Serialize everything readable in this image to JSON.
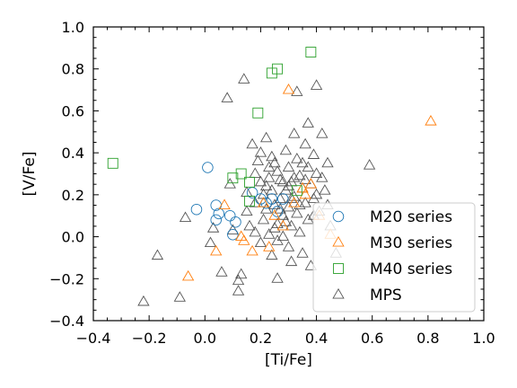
{
  "chart_data": {
    "type": "scatter",
    "title": "",
    "xlabel": "[Ti/Fe]",
    "ylabel": "[V/Fe]",
    "xlim": [
      -0.4,
      1.0
    ],
    "ylim": [
      -0.4,
      1.0
    ],
    "x_ticks": [
      -0.4,
      -0.2,
      0.0,
      0.2,
      0.4,
      0.6,
      0.8,
      1.0
    ],
    "y_ticks": [
      -0.4,
      -0.2,
      0.0,
      0.2,
      0.4,
      0.6,
      0.8,
      1.0
    ],
    "x_tick_labels": [
      "−0.4",
      "−0.2",
      "0.0",
      "0.2",
      "0.4",
      "0.6",
      "0.8",
      "1.0"
    ],
    "y_tick_labels": [
      "−0.4",
      "−0.2",
      "0.0",
      "0.2",
      "0.4",
      "0.6",
      "0.8",
      "1.0"
    ],
    "grid": false,
    "legend_position": "lower-right",
    "series": [
      {
        "name": "M20 series",
        "marker": "circle",
        "color": "#1f77b4",
        "points": [
          [
            0.01,
            0.33
          ],
          [
            -0.03,
            0.13
          ],
          [
            0.04,
            0.15
          ],
          [
            0.04,
            0.08
          ],
          [
            0.09,
            0.1
          ],
          [
            0.1,
            0.01
          ],
          [
            0.11,
            0.07
          ],
          [
            0.17,
            0.21
          ],
          [
            0.2,
            0.18
          ],
          [
            0.22,
            0.16
          ],
          [
            0.24,
            0.18
          ],
          [
            0.26,
            0.12
          ],
          [
            0.28,
            0.18
          ],
          [
            0.05,
            0.11
          ]
        ]
      },
      {
        "name": "M30 series",
        "marker": "triangle",
        "color": "#ff7f0e",
        "points": [
          [
            -0.06,
            -0.19
          ],
          [
            0.04,
            -0.07
          ],
          [
            0.07,
            0.15
          ],
          [
            0.14,
            -0.02
          ],
          [
            0.17,
            -0.07
          ],
          [
            0.21,
            0.16
          ],
          [
            0.25,
            0.1
          ],
          [
            0.28,
            0.05
          ],
          [
            0.3,
            0.7
          ],
          [
            0.32,
            0.16
          ],
          [
            0.35,
            0.23
          ],
          [
            0.36,
            0.2
          ],
          [
            0.38,
            0.25
          ],
          [
            0.41,
            0.1
          ],
          [
            0.45,
            0.01
          ],
          [
            0.81,
            0.55
          ],
          [
            0.13,
            0.0
          ],
          [
            0.23,
            -0.05
          ]
        ]
      },
      {
        "name": "M40 series",
        "marker": "square",
        "color": "#2ca02c",
        "points": [
          [
            -0.33,
            0.35
          ],
          [
            0.1,
            0.28
          ],
          [
            0.13,
            0.3
          ],
          [
            0.16,
            0.26
          ],
          [
            0.16,
            0.17
          ],
          [
            0.19,
            0.59
          ],
          [
            0.24,
            0.78
          ],
          [
            0.26,
            0.8
          ],
          [
            0.33,
            0.22
          ],
          [
            0.38,
            0.88
          ]
        ]
      },
      {
        "name": "MPS",
        "marker": "triangle",
        "color": "#555555",
        "points": [
          [
            -0.22,
            -0.31
          ],
          [
            -0.17,
            -0.09
          ],
          [
            -0.09,
            -0.29
          ],
          [
            -0.07,
            0.09
          ],
          [
            0.02,
            -0.03
          ],
          [
            0.03,
            0.04
          ],
          [
            0.06,
            -0.17
          ],
          [
            0.08,
            0.66
          ],
          [
            0.09,
            0.25
          ],
          [
            0.1,
            0.03
          ],
          [
            0.12,
            -0.21
          ],
          [
            0.12,
            -0.26
          ],
          [
            0.13,
            -0.18
          ],
          [
            0.14,
            0.75
          ],
          [
            0.15,
            0.12
          ],
          [
            0.16,
            0.05
          ],
          [
            0.17,
            0.44
          ],
          [
            0.18,
            0.3
          ],
          [
            0.18,
            0.02
          ],
          [
            0.19,
            0.36
          ],
          [
            0.2,
            0.4
          ],
          [
            0.2,
            -0.03
          ],
          [
            0.21,
            0.2
          ],
          [
            0.21,
            0.08
          ],
          [
            0.22,
            0.47
          ],
          [
            0.22,
            0.13
          ],
          [
            0.23,
            0.28
          ],
          [
            0.23,
            0.01
          ],
          [
            0.24,
            0.38
          ],
          [
            0.24,
            0.22
          ],
          [
            0.24,
            -0.09
          ],
          [
            0.25,
            0.35
          ],
          [
            0.25,
            0.15
          ],
          [
            0.26,
            0.06
          ],
          [
            0.26,
            -0.02
          ],
          [
            0.26,
            -0.2
          ],
          [
            0.27,
            0.27
          ],
          [
            0.27,
            0.18
          ],
          [
            0.28,
            0.1
          ],
          [
            0.28,
            0.0
          ],
          [
            0.29,
            0.41
          ],
          [
            0.29,
            0.22
          ],
          [
            0.3,
            0.33
          ],
          [
            0.3,
            0.14
          ],
          [
            0.3,
            -0.05
          ],
          [
            0.31,
            0.26
          ],
          [
            0.31,
            0.05
          ],
          [
            0.31,
            -0.12
          ],
          [
            0.32,
            0.49
          ],
          [
            0.32,
            0.19
          ],
          [
            0.33,
            0.37
          ],
          [
            0.33,
            0.69
          ],
          [
            0.33,
            0.11
          ],
          [
            0.34,
            0.29
          ],
          [
            0.34,
            0.02
          ],
          [
            0.35,
            0.23
          ],
          [
            0.35,
            -0.08
          ],
          [
            0.36,
            0.44
          ],
          [
            0.36,
            0.16
          ],
          [
            0.37,
            0.54
          ],
          [
            0.37,
            0.33
          ],
          [
            0.37,
            0.08
          ],
          [
            0.38,
            0.25
          ],
          [
            0.38,
            -0.14
          ],
          [
            0.39,
            0.39
          ],
          [
            0.39,
            0.18
          ],
          [
            0.4,
            0.72
          ],
          [
            0.4,
            0.3
          ],
          [
            0.41,
            0.12
          ],
          [
            0.42,
            0.49
          ],
          [
            0.43,
            0.22
          ],
          [
            0.44,
            0.35
          ],
          [
            0.45,
            0.05
          ],
          [
            0.47,
            -0.08
          ],
          [
            0.59,
            0.34
          ],
          [
            0.28,
            0.26
          ],
          [
            0.26,
            0.31
          ],
          [
            0.34,
            0.15
          ],
          [
            0.36,
            0.27
          ],
          [
            0.31,
            0.18
          ],
          [
            0.29,
            0.07
          ],
          [
            0.27,
            0.13
          ],
          [
            0.39,
            0.1
          ],
          [
            0.4,
            0.2
          ],
          [
            0.22,
            0.24
          ],
          [
            0.18,
            0.16
          ],
          [
            0.15,
            0.21
          ],
          [
            0.2,
            0.26
          ],
          [
            0.42,
            0.28
          ],
          [
            0.44,
            0.15
          ],
          [
            0.35,
            0.35
          ],
          [
            0.32,
            0.28
          ],
          [
            0.23,
            0.33
          ],
          [
            0.25,
            0.04
          ],
          [
            0.3,
            0.24
          ]
        ]
      }
    ]
  }
}
